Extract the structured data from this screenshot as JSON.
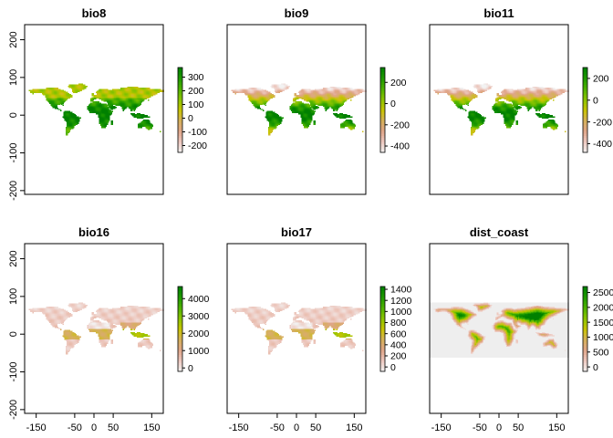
{
  "chart_data": [
    {
      "type": "heatmap",
      "title": "bio8",
      "xlim": [
        -180,
        180
      ],
      "ylim": [
        -210,
        240
      ],
      "yticks": [
        -200,
        -100,
        0,
        100,
        200
      ],
      "xticks": [],
      "raster_extent": {
        "x": [
          -180,
          180
        ],
        "y": [
          -60,
          84
        ]
      },
      "legend": {
        "range": [
          -250,
          370
        ],
        "ticks": [
          -200,
          -100,
          0,
          100,
          200,
          300
        ]
      },
      "land_colormap": "high-low"
    },
    {
      "type": "heatmap",
      "title": "bio9",
      "xlim": [
        -180,
        180
      ],
      "ylim": [
        -210,
        240
      ],
      "yticks": [],
      "xticks": [],
      "raster_extent": {
        "x": [
          -180,
          180
        ],
        "y": [
          -60,
          84
        ]
      },
      "legend": {
        "range": [
          -460,
          340
        ],
        "ticks": [
          -400,
          -200,
          0,
          200
        ]
      },
      "land_colormap": "cold-warm"
    },
    {
      "type": "heatmap",
      "title": "bio11",
      "xlim": [
        -180,
        180
      ],
      "ylim": [
        -210,
        240
      ],
      "yticks": [],
      "xticks": [],
      "raster_extent": {
        "x": [
          -180,
          180
        ],
        "y": [
          -60,
          84
        ]
      },
      "legend": {
        "range": [
          -480,
          300
        ],
        "ticks": [
          -400,
          -200,
          0,
          200
        ]
      },
      "land_colormap": "cold-warm"
    },
    {
      "type": "heatmap",
      "title": "bio16",
      "xlim": [
        -180,
        180
      ],
      "ylim": [
        -210,
        240
      ],
      "yticks": [
        -200,
        -100,
        0,
        100,
        200
      ],
      "xticks": [
        -150,
        -50,
        0,
        50,
        150
      ],
      "raster_extent": {
        "x": [
          -180,
          180
        ],
        "y": [
          -60,
          84
        ]
      },
      "legend": {
        "range": [
          -200,
          4700
        ],
        "ticks": [
          0,
          1000,
          2000,
          3000,
          4000
        ]
      },
      "land_colormap": "wet-dry"
    },
    {
      "type": "heatmap",
      "title": "bio17",
      "xlim": [
        -180,
        180
      ],
      "ylim": [
        -210,
        240
      ],
      "yticks": [],
      "xticks": [
        -150,
        -50,
        0,
        50,
        150
      ],
      "raster_extent": {
        "x": [
          -180,
          180
        ],
        "y": [
          -60,
          84
        ]
      },
      "legend": {
        "range": [
          -80,
          1450
        ],
        "ticks": [
          0,
          200,
          400,
          600,
          800,
          1000,
          1200,
          1400
        ]
      },
      "land_colormap": "wet-dry"
    },
    {
      "type": "heatmap",
      "title": "dist_coast",
      "xlim": [
        -180,
        180
      ],
      "ylim": [
        -210,
        240
      ],
      "yticks": [],
      "xticks": [
        -150,
        -50,
        0,
        50,
        150
      ],
      "raster_extent": {
        "x": [
          -180,
          180
        ],
        "y": [
          -60,
          84
        ]
      },
      "legend": {
        "range": [
          -150,
          2700
        ],
        "ticks": [
          0,
          500,
          1000,
          1500,
          2000,
          2500
        ]
      },
      "land_colormap": "distance"
    }
  ],
  "colors": {
    "ramp": [
      "#f2f2f2",
      "#edc9c0",
      "#e0a58a",
      "#d5b05a",
      "#c8c400",
      "#8cc400",
      "#4fb200",
      "#1f9a00",
      "#008000"
    ],
    "ocean_dist": "#eeeeee"
  }
}
